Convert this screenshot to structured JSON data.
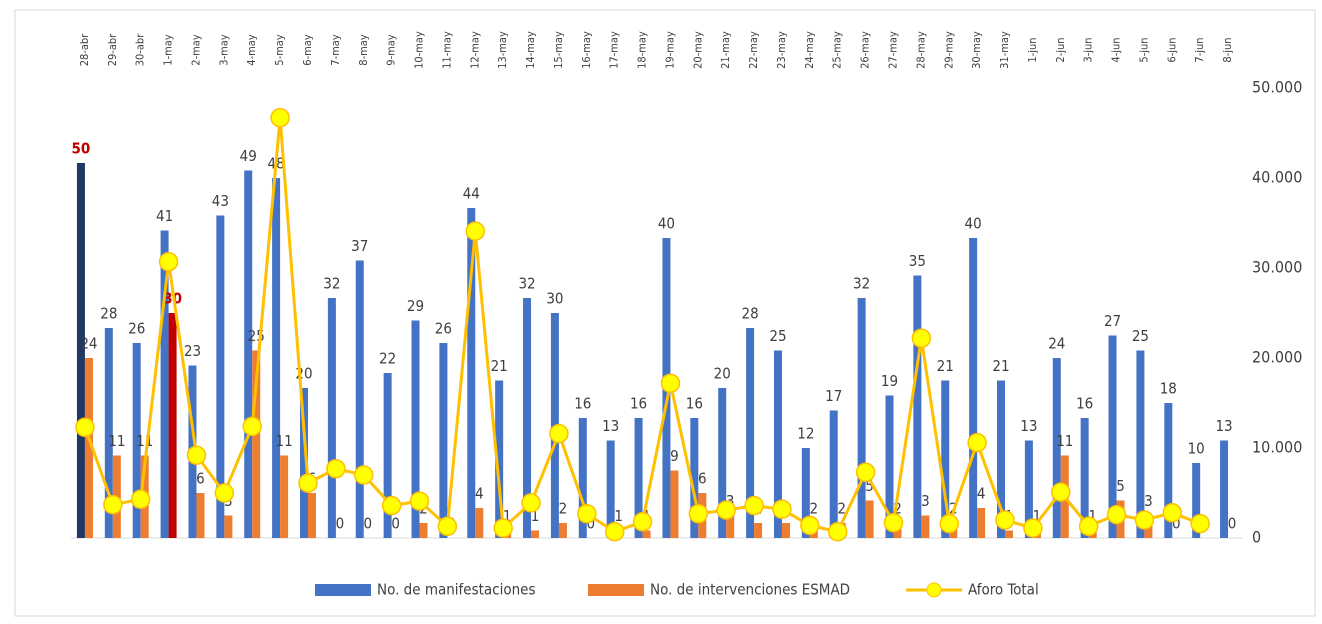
{
  "chart_data": {
    "type": "bar_line",
    "categories": [
      "28-abr",
      "29-abr",
      "30-abr",
      "1-may",
      "2-may",
      "3-may",
      "4-may",
      "5-may",
      "6-may",
      "7-may",
      "8-may",
      "9-may",
      "10-may",
      "11-may",
      "12-may",
      "13-may",
      "14-may",
      "15-may",
      "16-may",
      "17-may",
      "18-may",
      "19-may",
      "20-may",
      "21-may",
      "22-may",
      "23-may",
      "24-may",
      "25-may",
      "26-may",
      "27-may",
      "28-may",
      "29-may",
      "30-may",
      "31-may",
      "1-jun",
      "2-jun",
      "3-jun",
      "4-jun",
      "5-jun",
      "6-jun",
      "7-jun",
      "8-jun"
    ],
    "ylim": [
      0,
      60
    ],
    "y2lim": [
      0,
      50000
    ],
    "y2ticks": [
      0,
      {
        "value": 10000,
        "label": "10.000"
      },
      {
        "value": 20000,
        "label": "20.000"
      },
      {
        "value": 30000,
        "label": "30.000"
      },
      {
        "value": 40000,
        "label": "40.000"
      },
      {
        "value": 50000,
        "label": "50.000"
      }
    ],
    "series": [
      {
        "name": "No. de manifestaciones",
        "type": "bar",
        "color": "#4472c4",
        "values": [
          50,
          28,
          26,
          41,
          23,
          43,
          49,
          48,
          20,
          32,
          37,
          22,
          29,
          26,
          44,
          21,
          32,
          30,
          16,
          13,
          16,
          40,
          16,
          20,
          28,
          25,
          12,
          17,
          32,
          19,
          35,
          21,
          40,
          21,
          13,
          24,
          16,
          27,
          25,
          18,
          10,
          13
        ],
        "highlight": {
          "index": 0,
          "color": "#1f3864",
          "label_color": "#c00000"
        }
      },
      {
        "name": "No. de intervenciones ESMAD",
        "type": "bar",
        "color": "#ed7d31",
        "values": [
          24,
          11,
          11,
          30,
          6,
          3,
          25,
          11,
          6,
          0,
          0,
          0,
          2,
          0,
          4,
          1,
          1,
          2,
          0,
          1,
          1,
          9,
          6,
          3,
          2,
          2,
          2,
          2,
          5,
          2,
          3,
          2,
          4,
          1,
          1,
          11,
          1,
          5,
          3,
          0,
          0,
          0
        ],
        "highlight": {
          "index": 3,
          "color": "#c00000",
          "label_color": "#c00000"
        }
      },
      {
        "name": "Aforo Total",
        "type": "line",
        "axis": "y2",
        "color": "#ffc000",
        "marker_color": "#ffff00",
        "values": [
          12300,
          3700,
          4300,
          30700,
          9200,
          5000,
          12400,
          46700,
          6100,
          7700,
          7000,
          3600,
          4100,
          1300,
          34100,
          1100,
          3900,
          11600,
          2700,
          700,
          1800,
          17200,
          2700,
          3100,
          3600,
          3200,
          1400,
          700,
          7300,
          1700,
          22200,
          1600,
          10600,
          2000,
          1100,
          5100,
          1300,
          2600,
          2000,
          2800,
          1600,
          null
        ]
      }
    ]
  }
}
